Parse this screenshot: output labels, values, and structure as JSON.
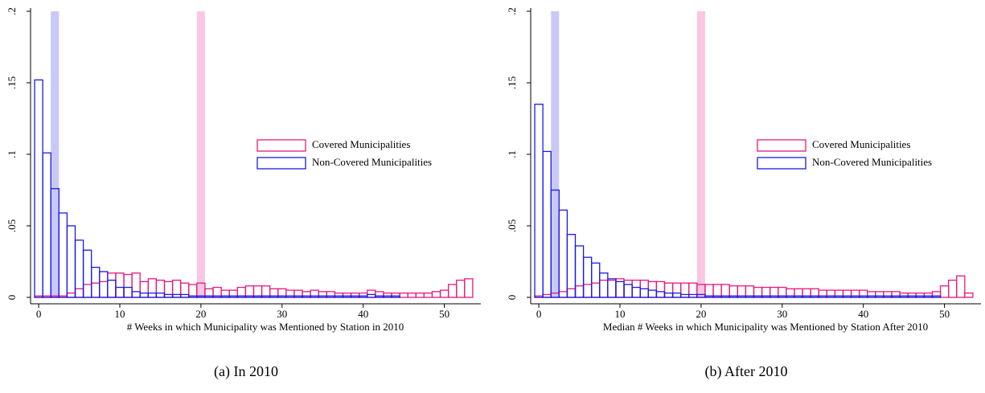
{
  "chart_data": [
    {
      "type": "histogram",
      "xlabel": "# Weeks in which Municipality was Mentioned by Station in 2010",
      "caption": "(a) In 2010",
      "bins": [
        -0.5,
        0.5,
        1.5,
        2.5,
        3.5,
        4.5,
        5.5,
        6.5,
        7.5,
        8.5,
        9.5,
        10.5,
        11.5,
        12.5,
        13.5,
        14.5,
        15.5,
        16.5,
        17.5,
        18.5,
        19.5,
        20.5,
        21.5,
        22.5,
        23.5,
        24.5,
        25.5,
        26.5,
        27.5,
        28.5,
        29.5,
        30.5,
        31.5,
        32.5,
        33.5,
        34.5,
        35.5,
        36.5,
        37.5,
        38.5,
        39.5,
        40.5,
        41.5,
        42.5,
        43.5,
        44.5,
        45.5,
        46.5,
        47.5,
        48.5,
        49.5,
        50.5,
        51.5,
        52.5,
        53.5
      ],
      "series": [
        {
          "name": "Covered Municipalities",
          "color": "#e6197d",
          "values": [
            0.001,
            0.001,
            0.001,
            0.001,
            0.003,
            0.006,
            0.009,
            0.01,
            0.011,
            0.017,
            0.017,
            0.016,
            0.017,
            0.011,
            0.013,
            0.012,
            0.011,
            0.012,
            0.01,
            0.009,
            0.01,
            0.006,
            0.007,
            0.005,
            0.005,
            0.007,
            0.008,
            0.008,
            0.008,
            0.006,
            0.006,
            0.005,
            0.005,
            0.004,
            0.005,
            0.004,
            0.004,
            0.003,
            0.003,
            0.003,
            0.003,
            0.005,
            0.004,
            0.003,
            0.003,
            0.003,
            0.003,
            0.003,
            0.003,
            0.004,
            0.005,
            0.009,
            0.012,
            0.013
          ]
        },
        {
          "name": "Non-Covered Municipalities",
          "color": "#1a1ae6",
          "values": [
            0.152,
            0.101,
            0.076,
            0.059,
            0.05,
            0.04,
            0.033,
            0.021,
            0.018,
            0.012,
            0.007,
            0.007,
            0.004,
            0.003,
            0.003,
            0.003,
            0.002,
            0.002,
            0.002,
            0.001,
            0.001,
            0.001,
            0.001,
            0.001,
            0.001,
            0.001,
            0.001,
            0.001,
            0.001,
            0.001,
            0.001,
            0.001,
            0.001,
            0.001,
            0.001,
            0.001,
            0.001,
            0.001,
            0.001,
            0.001,
            0.001,
            0.002,
            0.001,
            0.001,
            0.001,
            0,
            0,
            0,
            0,
            0,
            0,
            0,
            0,
            0
          ]
        }
      ],
      "bands": [
        {
          "x": 2,
          "color": "#c9c9f7"
        },
        {
          "x": 20,
          "color": "#fbc6e2"
        }
      ],
      "xlim": [
        -1,
        54.5
      ],
      "ylim": [
        0,
        0.2
      ],
      "xticks": [
        0,
        10,
        20,
        30,
        40,
        50
      ],
      "yticks": [
        {
          "value": 0,
          "label": "0"
        },
        {
          "value": 0.05,
          "label": ".05"
        },
        {
          "value": 0.1,
          "label": ".1"
        },
        {
          "value": 0.15,
          "label": ".15"
        },
        {
          "value": 0.2,
          "label": ".2"
        }
      ]
    },
    {
      "type": "histogram",
      "xlabel": "Median # Weeks in which Municipality was Mentioned by Station After 2010",
      "caption": "(b) After 2010",
      "bins": [
        -0.5,
        0.5,
        1.5,
        2.5,
        3.5,
        4.5,
        5.5,
        6.5,
        7.5,
        8.5,
        9.5,
        10.5,
        11.5,
        12.5,
        13.5,
        14.5,
        15.5,
        16.5,
        17.5,
        18.5,
        19.5,
        20.5,
        21.5,
        22.5,
        23.5,
        24.5,
        25.5,
        26.5,
        27.5,
        28.5,
        29.5,
        30.5,
        31.5,
        32.5,
        33.5,
        34.5,
        35.5,
        36.5,
        37.5,
        38.5,
        39.5,
        40.5,
        41.5,
        42.5,
        43.5,
        44.5,
        45.5,
        46.5,
        47.5,
        48.5,
        49.5,
        50.5,
        51.5,
        52.5,
        53.5
      ],
      "series": [
        {
          "name": "Covered Municipalities",
          "color": "#e6197d",
          "values": [
            0.001,
            0.002,
            0.003,
            0.004,
            0.006,
            0.008,
            0.009,
            0.01,
            0.012,
            0.012,
            0.013,
            0.012,
            0.012,
            0.012,
            0.011,
            0.011,
            0.01,
            0.01,
            0.01,
            0.01,
            0.009,
            0.009,
            0.009,
            0.009,
            0.008,
            0.008,
            0.008,
            0.007,
            0.007,
            0.007,
            0.007,
            0.006,
            0.006,
            0.006,
            0.006,
            0.005,
            0.005,
            0.005,
            0.005,
            0.005,
            0.005,
            0.004,
            0.004,
            0.004,
            0.004,
            0.003,
            0.003,
            0.003,
            0.003,
            0.004,
            0.008,
            0.012,
            0.015,
            0.003
          ]
        },
        {
          "name": "Non-Covered Municipalities",
          "color": "#1a1ae6",
          "values": [
            0.135,
            0.102,
            0.075,
            0.061,
            0.044,
            0.036,
            0.028,
            0.024,
            0.017,
            0.013,
            0.011,
            0.009,
            0.007,
            0.006,
            0.005,
            0.004,
            0.003,
            0.003,
            0.002,
            0.002,
            0.002,
            0.001,
            0.001,
            0.001,
            0.001,
            0.001,
            0.001,
            0.001,
            0.001,
            0.001,
            0.001,
            0.001,
            0.001,
            0.001,
            0.001,
            0.001,
            0.001,
            0.001,
            0.001,
            0.001,
            0.001,
            0.001,
            0.001,
            0.001,
            0.001,
            0.001,
            0.001,
            0.001,
            0.001,
            0.001,
            0,
            0,
            0,
            0
          ]
        }
      ],
      "bands": [
        {
          "x": 2,
          "color": "#c9c9f7"
        },
        {
          "x": 20,
          "color": "#fbc6e2"
        }
      ],
      "xlim": [
        -1,
        54.5
      ],
      "ylim": [
        0,
        0.2
      ],
      "xticks": [
        0,
        10,
        20,
        30,
        40,
        50
      ],
      "yticks": [
        {
          "value": 0,
          "label": "0"
        },
        {
          "value": 0.05,
          "label": ".05"
        },
        {
          "value": 0.1,
          "label": ".1"
        },
        {
          "value": 0.15,
          "label": ".15"
        },
        {
          "value": 0.2,
          "label": ".2"
        }
      ]
    }
  ]
}
